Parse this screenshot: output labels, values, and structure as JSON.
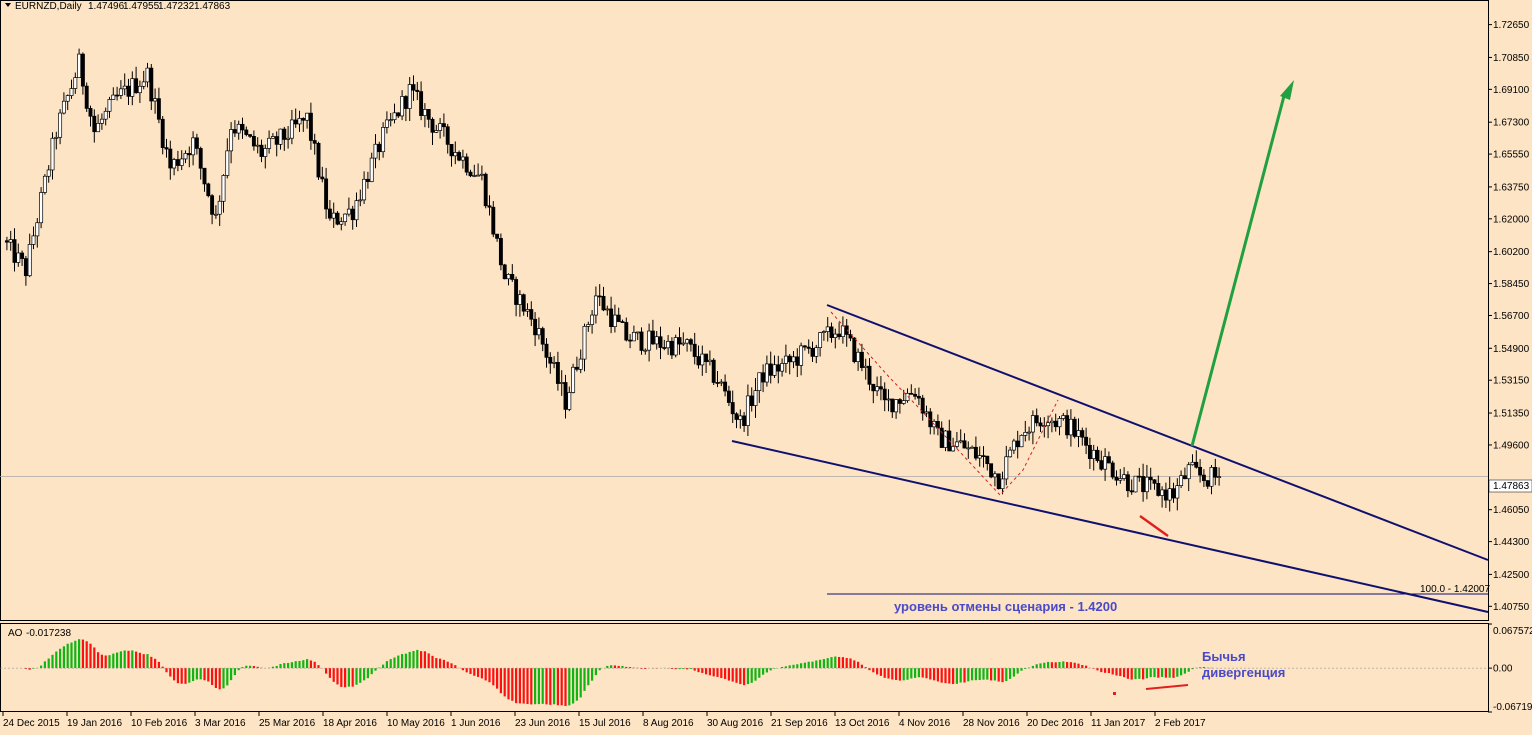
{
  "chart_data": {
    "type": "candlestick",
    "symbol": "EURNZD,Daily",
    "ohlc": {
      "open": "1.47496",
      "high": "1.47955",
      "low": "1.47232",
      "close": "1.47863"
    },
    "current_price_label": "1.47863",
    "y_ticks": [
      "1.72650",
      "1.70850",
      "1.69100",
      "1.67300",
      "1.65550",
      "1.63750",
      "1.62000",
      "1.60200",
      "1.58450",
      "1.56700",
      "1.54900",
      "1.53150",
      "1.51350",
      "1.49600",
      "1.46050",
      "1.44300",
      "1.42500",
      "1.40750"
    ],
    "y_range": [
      1.4,
      1.74
    ],
    "x_ticks": [
      "24 Dec 2015",
      "19 Jan 2016",
      "10 Feb 2016",
      "3 Mar 2016",
      "25 Mar 2016",
      "18 Apr 2016",
      "10 May 2016",
      "1 Jun 2016",
      "23 Jun 2016",
      "15 Jul 2016",
      "8 Aug 2016",
      "30 Aug 2016",
      "21 Sep 2016",
      "13 Oct 2016",
      "4 Nov 2016",
      "28 Nov 2016",
      "20 Dec 2016",
      "11 Jan 2017",
      "2 Feb 2017"
    ],
    "trend_path": [
      [
        0,
        1.608
      ],
      [
        6,
        1.592
      ],
      [
        14,
        1.668
      ],
      [
        20,
        1.705
      ],
      [
        24,
        1.668
      ],
      [
        30,
        1.686
      ],
      [
        38,
        1.699
      ],
      [
        44,
        1.648
      ],
      [
        50,
        1.662
      ],
      [
        56,
        1.62
      ],
      [
        60,
        1.672
      ],
      [
        68,
        1.656
      ],
      [
        74,
        1.665
      ],
      [
        80,
        1.675
      ],
      [
        86,
        1.618
      ],
      [
        92,
        1.625
      ],
      [
        100,
        1.665
      ],
      [
        107,
        1.69
      ],
      [
        113,
        1.672
      ],
      [
        120,
        1.655
      ],
      [
        126,
        1.642
      ],
      [
        132,
        1.588
      ],
      [
        140,
        1.562
      ],
      [
        148,
        1.52
      ],
      [
        156,
        1.578
      ],
      [
        164,
        1.555
      ],
      [
        172,
        1.552
      ],
      [
        180,
        1.55
      ],
      [
        188,
        1.532
      ],
      [
        194,
        1.508
      ],
      [
        200,
        1.535
      ],
      [
        206,
        1.54
      ],
      [
        212,
        1.548
      ],
      [
        220,
        1.56
      ],
      [
        226,
        1.54
      ],
      [
        232,
        1.518
      ],
      [
        240,
        1.526
      ],
      [
        246,
        1.5
      ],
      [
        252,
        1.496
      ],
      [
        258,
        1.488
      ],
      [
        262,
        1.478
      ],
      [
        268,
        1.504
      ],
      [
        274,
        1.512
      ],
      [
        280,
        1.507
      ],
      [
        288,
        1.49
      ],
      [
        296,
        1.476
      ],
      [
        302,
        1.472
      ],
      [
        308,
        1.469
      ],
      [
        312,
        1.482
      ],
      [
        316,
        1.478
      ]
    ],
    "indicator": {
      "name": "AO",
      "value": "-0.017238",
      "y_ticks": [
        "0.067572",
        "0.00",
        "-0.067194"
      ],
      "y_range": [
        -0.0672,
        0.0676
      ]
    },
    "fib_label": "100.0 - 1.42007",
    "invalidation_text": "уровень отмены сценария - 1.4200",
    "divergence_text": [
      "Бычья",
      "дивергенция"
    ],
    "colors": {
      "background": "#fde4c4",
      "channel": "#101070",
      "target_arrow": "#20a040",
      "divergence": "#e02020",
      "ao_up": "#11b511",
      "ao_down": "#ff1010",
      "annotation": "#4a4ac8"
    }
  }
}
